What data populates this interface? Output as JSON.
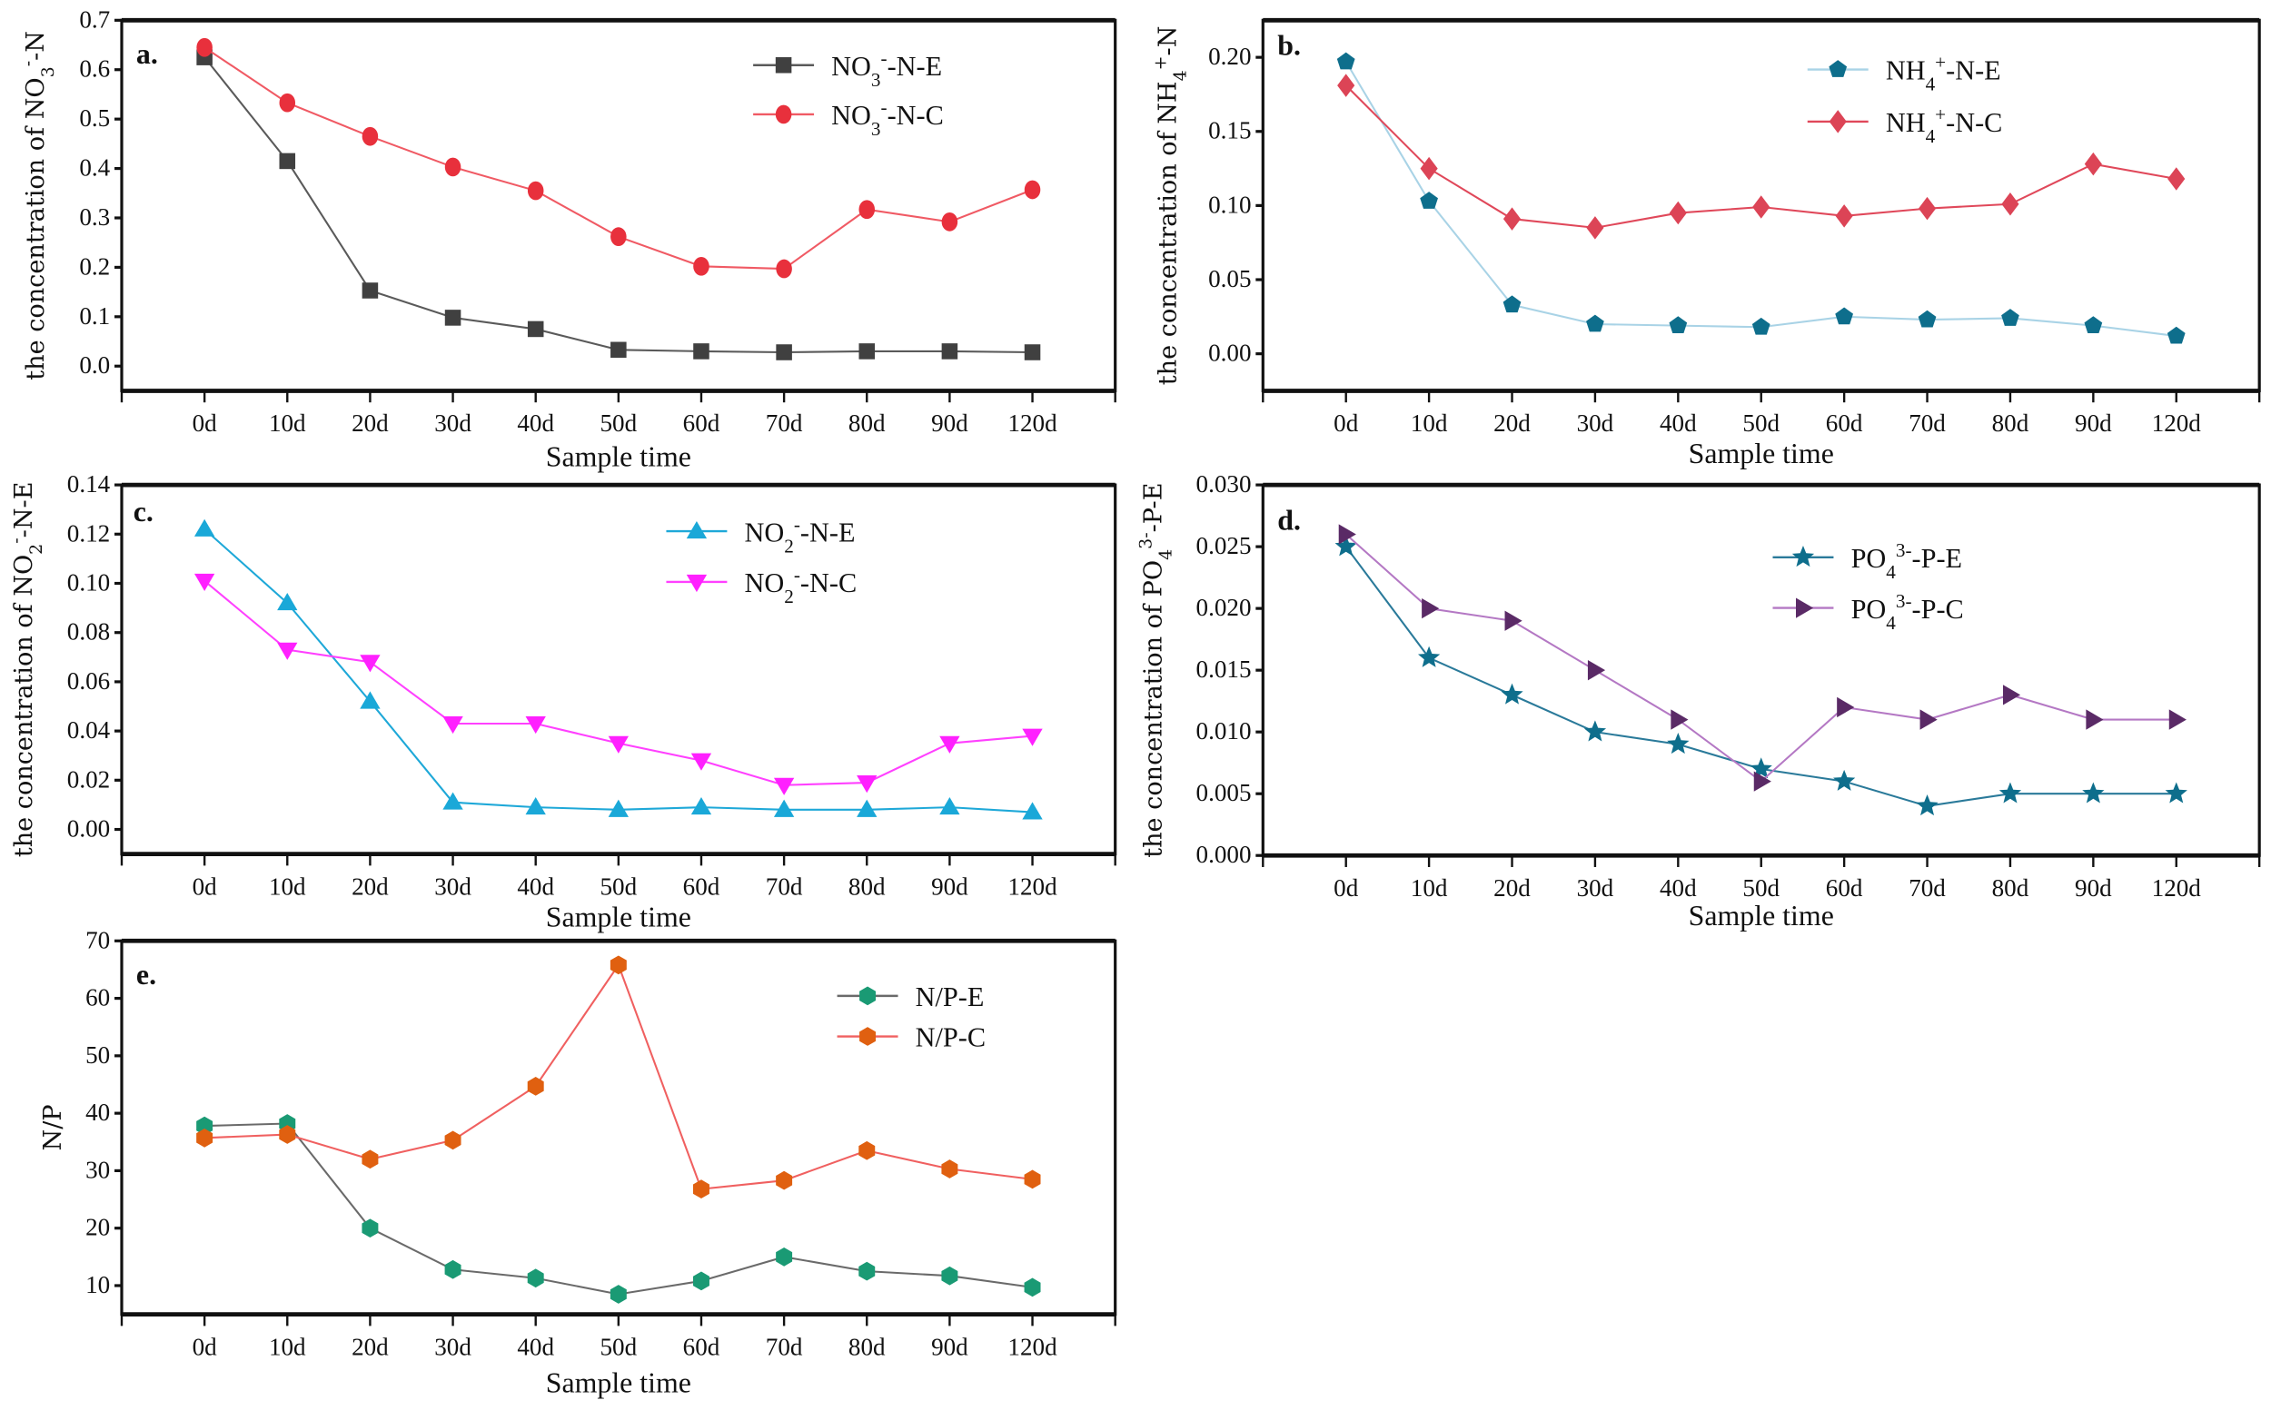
{
  "chart_data": [
    {
      "type": "line",
      "panel_label": "a.",
      "categories": [
        "0d",
        "10d",
        "20d",
        "30d",
        "40d",
        "50d",
        "60d",
        "70d",
        "80d",
        "90d",
        "120d"
      ],
      "xlabel": "Sample time",
      "ylabel": [
        {
          "t": "the concentration of NO"
        },
        {
          "t": "3",
          "s": "sub"
        },
        {
          "t": "-",
          "s": "sup"
        },
        {
          "t": "-N"
        }
      ],
      "ylim": [
        -0.05,
        0.7
      ],
      "yticks": [
        "0.0",
        "0.1",
        "0.2",
        "0.3",
        "0.4",
        "0.5",
        "0.6",
        "0.7"
      ],
      "legend_position": "top-right",
      "series": [
        {
          "name": [
            {
              "t": "NO"
            },
            {
              "t": "3",
              "s": "sub"
            },
            {
              "t": "-",
              "s": "sup"
            },
            {
              "t": "-N-E"
            }
          ],
          "marker": "square",
          "line_color": "#5a5a5a",
          "marker_color": "#404040",
          "values": [
            0.625,
            0.415,
            0.153,
            0.098,
            0.075,
            0.033,
            0.03,
            0.028,
            0.03,
            0.03,
            0.028
          ]
        },
        {
          "name": [
            {
              "t": "NO"
            },
            {
              "t": "3",
              "s": "sub"
            },
            {
              "t": "-",
              "s": "sup"
            },
            {
              "t": "-N-C"
            }
          ],
          "marker": "circle",
          "line_color": "#f05a64",
          "marker_color": "#e8303c",
          "values": [
            0.645,
            0.533,
            0.465,
            0.403,
            0.355,
            0.262,
            0.202,
            0.197,
            0.317,
            0.292,
            0.357
          ]
        }
      ]
    },
    {
      "type": "line",
      "panel_label": "b.",
      "categories": [
        "0d",
        "10d",
        "20d",
        "30d",
        "40d",
        "50d",
        "60d",
        "70d",
        "80d",
        "90d",
        "120d"
      ],
      "xlabel": "Sample time",
      "ylabel": [
        {
          "t": "the concentration of NH"
        },
        {
          "t": "4",
          "s": "sub"
        },
        {
          "t": "+",
          "s": "sup"
        },
        {
          "t": "-N"
        }
      ],
      "ylim": [
        -0.025,
        0.225
      ],
      "yticks": [
        "0.00",
        "0.05",
        "0.10",
        "0.15",
        "0.20"
      ],
      "legend_position": "top-right",
      "series": [
        {
          "name": [
            {
              "t": "NH"
            },
            {
              "t": "4",
              "s": "sub"
            },
            {
              "t": "+",
              "s": "sup"
            },
            {
              "t": "-N-E"
            }
          ],
          "marker": "pentagon",
          "line_color": "#a9d3e6",
          "marker_color": "#0e6e8c",
          "values": [
            0.197,
            0.103,
            0.033,
            0.02,
            0.019,
            0.018,
            0.025,
            0.023,
            0.024,
            0.019,
            0.012
          ]
        },
        {
          "name": [
            {
              "t": "NH"
            },
            {
              "t": "4",
              "s": "sub"
            },
            {
              "t": "+",
              "s": "sup"
            },
            {
              "t": "-N-C"
            }
          ],
          "marker": "diamond",
          "line_color": "#e0485a",
          "marker_color": "#dc4456",
          "values": [
            0.181,
            0.125,
            0.091,
            0.085,
            0.095,
            0.099,
            0.093,
            0.098,
            0.101,
            0.128,
            0.118
          ]
        }
      ]
    },
    {
      "type": "line",
      "panel_label": "c.",
      "categories": [
        "0d",
        "10d",
        "20d",
        "30d",
        "40d",
        "50d",
        "60d",
        "70d",
        "80d",
        "90d",
        "120d"
      ],
      "xlabel": "Sample time",
      "ylabel": [
        {
          "t": "the concentration of NO"
        },
        {
          "t": "2",
          "s": "sub"
        },
        {
          "t": "-",
          "s": "sup"
        },
        {
          "t": "-N-E"
        }
      ],
      "ylim": [
        -0.01,
        0.14
      ],
      "yticks": [
        "0.00",
        "0.02",
        "0.04",
        "0.06",
        "0.08",
        "0.10",
        "0.12",
        "0.14"
      ],
      "legend_position": "top-right",
      "series": [
        {
          "name": [
            {
              "t": "NO"
            },
            {
              "t": "2",
              "s": "sub"
            },
            {
              "t": "-",
              "s": "sup"
            },
            {
              "t": "-N-E"
            }
          ],
          "marker": "triangle-up",
          "line_color": "#1ea8d8",
          "marker_color": "#1aa8d8",
          "values": [
            0.122,
            0.092,
            0.052,
            0.011,
            0.009,
            0.008,
            0.009,
            0.008,
            0.008,
            0.009,
            0.007
          ]
        },
        {
          "name": [
            {
              "t": "NO"
            },
            {
              "t": "2",
              "s": "sub"
            },
            {
              "t": "-",
              "s": "sup"
            },
            {
              "t": "-N-C"
            }
          ],
          "marker": "triangle-down",
          "line_color": "#ff40ff",
          "marker_color": "#ff20ff",
          "values": [
            0.101,
            0.073,
            0.068,
            0.043,
            0.043,
            0.035,
            0.028,
            0.018,
            0.019,
            0.035,
            0.038
          ]
        }
      ]
    },
    {
      "type": "line",
      "panel_label": "d.",
      "categories": [
        "0d",
        "10d",
        "20d",
        "30d",
        "40d",
        "50d",
        "60d",
        "70d",
        "80d",
        "90d",
        "120d"
      ],
      "xlabel": "Sample time",
      "ylabel": [
        {
          "t": "the concentration of PO"
        },
        {
          "t": "4",
          "s": "sub"
        },
        {
          "t": "3-",
          "s": "sup"
        },
        {
          "t": "-P-E"
        }
      ],
      "ylim": [
        0,
        0.03
      ],
      "yticks": [
        "0.000",
        "0.005",
        "0.010",
        "0.015",
        "0.020",
        "0.025",
        "0.030"
      ],
      "legend_position": "top-right",
      "series": [
        {
          "name": [
            {
              "t": "PO"
            },
            {
              "t": "4",
              "s": "sub"
            },
            {
              "t": "3-",
              "s": "sup"
            },
            {
              "t": "-P-E"
            }
          ],
          "marker": "star",
          "line_color": "#2a7a9a",
          "marker_color": "#0e6e8c",
          "values": [
            0.025,
            0.016,
            0.013,
            0.01,
            0.009,
            0.007,
            0.006,
            0.004,
            0.005,
            0.005,
            0.005
          ]
        },
        {
          "name": [
            {
              "t": "PO"
            },
            {
              "t": "4",
              "s": "sub"
            },
            {
              "t": "3-",
              "s": "sup"
            },
            {
              "t": "-P-C"
            }
          ],
          "marker": "triangle-right",
          "line_color": "#b478c4",
          "marker_color": "#5a2a66",
          "values": [
            0.026,
            0.02,
            0.019,
            0.015,
            0.011,
            0.006,
            0.012,
            0.011,
            0.013,
            0.011,
            0.011
          ]
        }
      ]
    },
    {
      "type": "line",
      "panel_label": "e.",
      "categories": [
        "0d",
        "10d",
        "20d",
        "30d",
        "40d",
        "50d",
        "60d",
        "70d",
        "80d",
        "90d",
        "120d"
      ],
      "xlabel": "Sample time",
      "ylabel": [
        {
          "t": "N/P"
        }
      ],
      "ylim": [
        5,
        70
      ],
      "yticks": [
        "10",
        "20",
        "30",
        "40",
        "50",
        "60",
        "70"
      ],
      "legend_position": "top-right",
      "series": [
        {
          "name": [
            {
              "t": "N/P-E"
            }
          ],
          "marker": "hexagon",
          "line_color": "#6a6a6a",
          "marker_color": "#1a9a74",
          "values": [
            37.8,
            38.2,
            20.0,
            12.8,
            11.3,
            8.5,
            10.8,
            15.0,
            12.5,
            11.7,
            9.7
          ]
        },
        {
          "name": [
            {
              "t": "N/P-C"
            }
          ],
          "marker": "hexagon",
          "line_color": "#f06060",
          "marker_color": "#e06010",
          "values": [
            35.7,
            36.3,
            32.0,
            35.3,
            44.7,
            65.8,
            26.8,
            28.3,
            33.5,
            30.3,
            28.5
          ]
        }
      ]
    }
  ]
}
